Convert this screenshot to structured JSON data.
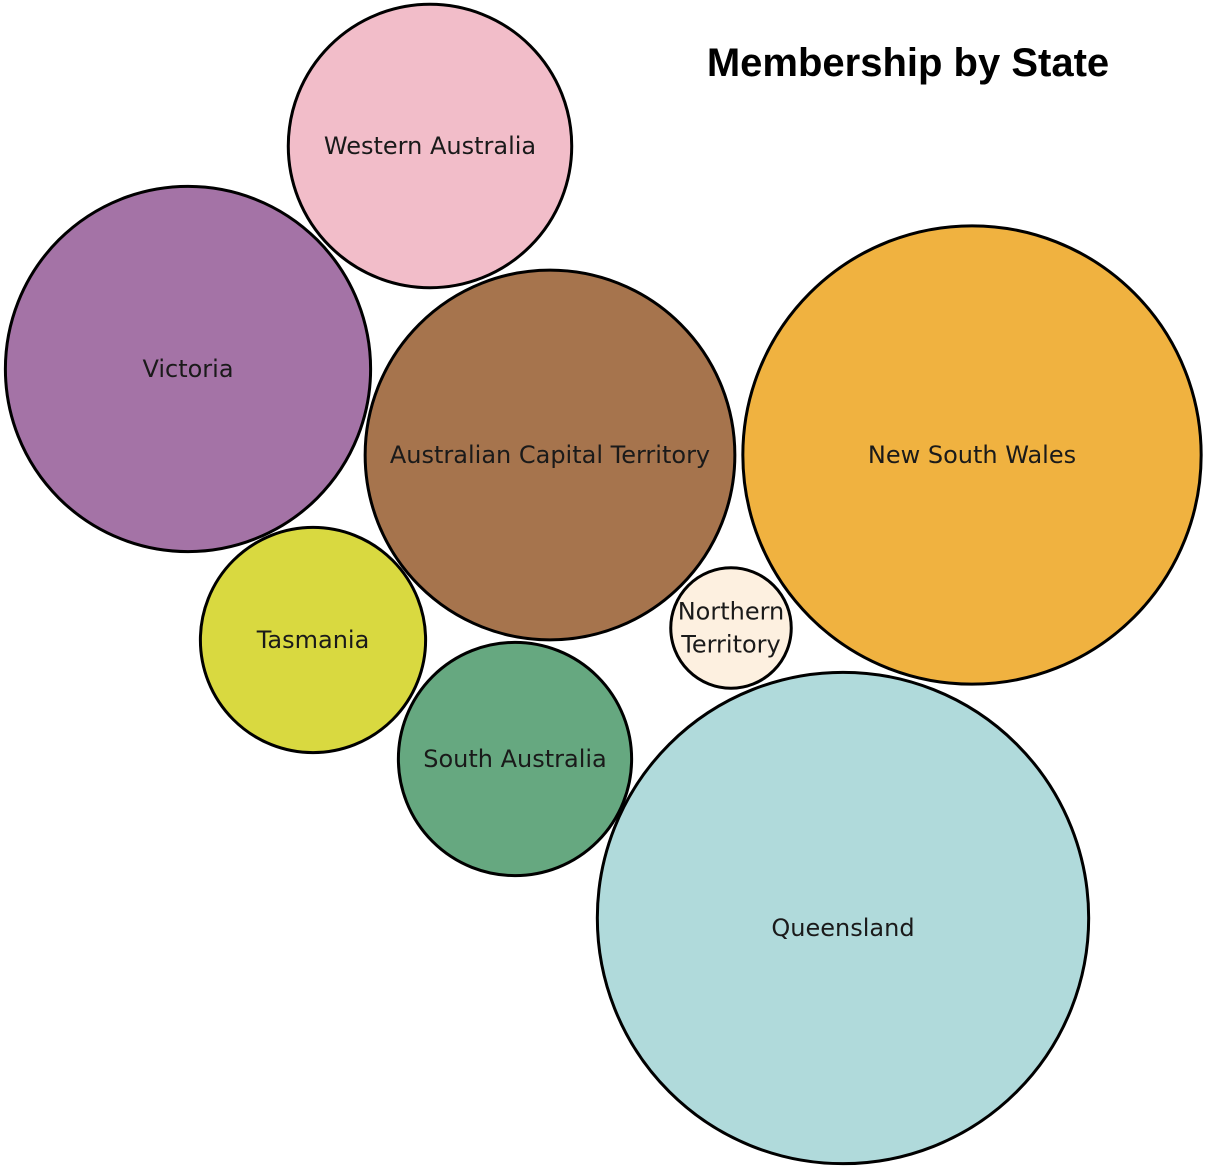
{
  "chart_data": {
    "type": "bubble",
    "title": "Membership by State",
    "series": [
      {
        "label": "Western Australia",
        "label_lines": [
          "Western Australia"
        ],
        "value": 41.5,
        "color": "#F2BDC9"
      },
      {
        "label": "Victoria",
        "label_lines": [
          "Victoria"
        ],
        "value": 68.9,
        "color": "#A473A6"
      },
      {
        "label": "Australian Capital Territory",
        "label_lines": [
          "Australian Capital Territory"
        ],
        "value": 70.6,
        "color": "#A6744D"
      },
      {
        "label": "New South Wales",
        "label_lines": [
          "New South Wales"
        ],
        "value": 108.5,
        "color": "#F0B240"
      },
      {
        "label": "Tasmania",
        "label_lines": [
          "Tasmania"
        ],
        "value": 26.2,
        "color": "#D9D940"
      },
      {
        "label": "Northern Territory",
        "label_lines": [
          "Northern",
          "Territory"
        ],
        "value": 7.5,
        "color": "#FDF0E0"
      },
      {
        "label": "South Australia",
        "label_lines": [
          "South Australia"
        ],
        "value": 28.1,
        "color": "#66A880"
      },
      {
        "label": "Queensland",
        "label_lines": [
          "Queensland"
        ],
        "value": 124.7,
        "color": "#B0DADB"
      }
    ],
    "stroke_color": "#000000"
  }
}
